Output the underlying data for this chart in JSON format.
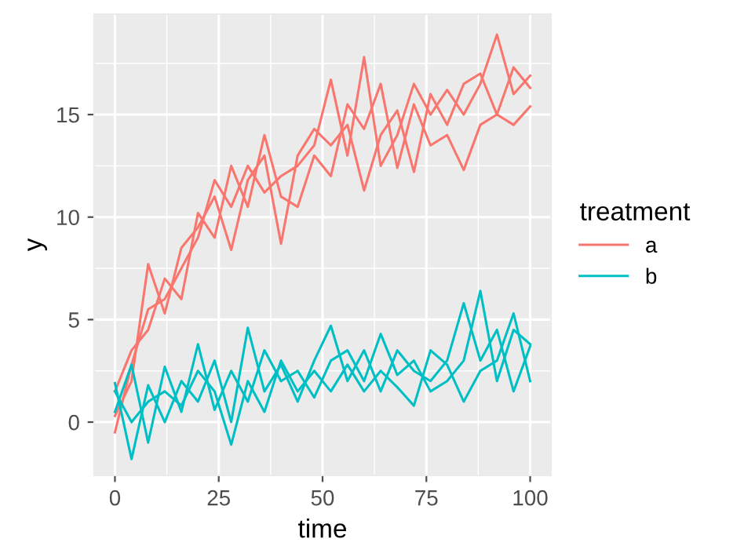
{
  "chart_data": {
    "type": "line",
    "xlabel": "time",
    "ylabel": "y",
    "legend_title": "treatment",
    "x": [
      0,
      4,
      8,
      12,
      16,
      20,
      24,
      28,
      32,
      36,
      40,
      44,
      48,
      52,
      56,
      60,
      64,
      68,
      72,
      76,
      80,
      84,
      88,
      92,
      96,
      100
    ],
    "series": [
      {
        "name": "a",
        "color": "#f8766d",
        "values": [
          -0.5,
          2.8,
          5.5,
          6.0,
          7.5,
          9.0,
          11.8,
          10.5,
          12.5,
          11.2,
          12.0,
          12.5,
          13.5,
          16.7,
          13.0,
          17.8,
          12.5,
          14.0,
          16.5,
          15.0,
          16.2,
          15.0,
          16.5,
          18.9,
          16.0,
          16.9
        ]
      },
      {
        "color": "#f8766d",
        "values": [
          0.3,
          2.0,
          7.7,
          5.3,
          8.5,
          9.5,
          11.0,
          8.4,
          11.8,
          13.0,
          8.7,
          13.0,
          14.3,
          13.5,
          14.5,
          11.3,
          14.0,
          15.2,
          12.2,
          16.0,
          14.5,
          16.5,
          17.0,
          15.0,
          17.3,
          16.3
        ]
      },
      {
        "color": "#f8766d",
        "values": [
          1.5,
          3.5,
          4.5,
          7.0,
          6.0,
          10.2,
          9.0,
          12.5,
          10.5,
          14.0,
          11.0,
          10.5,
          13.0,
          12.0,
          15.5,
          14.3,
          16.5,
          12.4,
          15.5,
          13.5,
          14.0,
          12.3,
          14.5,
          15.0,
          14.5,
          15.4
        ]
      },
      {
        "name": "b",
        "color": "#00bfc4",
        "values": [
          1.9,
          -1.8,
          1.8,
          0.0,
          2.0,
          1.0,
          3.0,
          0.0,
          4.6,
          1.5,
          2.8,
          1.0,
          3.0,
          4.7,
          2.0,
          3.5,
          1.5,
          3.5,
          2.5,
          2.0,
          3.0,
          5.8,
          3.0,
          4.5,
          1.5,
          3.7
        ]
      },
      {
        "color": "#00bfc4",
        "values": [
          0.5,
          2.8,
          -1.0,
          2.7,
          0.5,
          3.8,
          0.6,
          2.5,
          1.0,
          3.5,
          2.0,
          2.5,
          1.2,
          3.0,
          3.5,
          2.0,
          4.3,
          2.3,
          3.0,
          1.5,
          2.0,
          3.0,
          6.4,
          2.0,
          4.5,
          3.8
        ]
      },
      {
        "color": "#00bfc4",
        "values": [
          1.5,
          0.0,
          1.0,
          1.5,
          0.8,
          2.5,
          1.5,
          -1.1,
          2.0,
          0.5,
          3.0,
          1.5,
          2.5,
          1.5,
          2.8,
          1.5,
          2.5,
          1.7,
          0.8,
          3.5,
          2.8,
          1.0,
          2.5,
          3.0,
          5.3,
          2.0
        ]
      }
    ],
    "xlim": [
      -5,
      105
    ],
    "ylim": [
      -2.6,
      19.9
    ],
    "xticks": [
      0,
      25,
      50,
      75,
      100
    ],
    "yticks": [
      0,
      5,
      10,
      15
    ],
    "grid": true,
    "legend": "right",
    "marker": "none",
    "line_style": "solid"
  }
}
